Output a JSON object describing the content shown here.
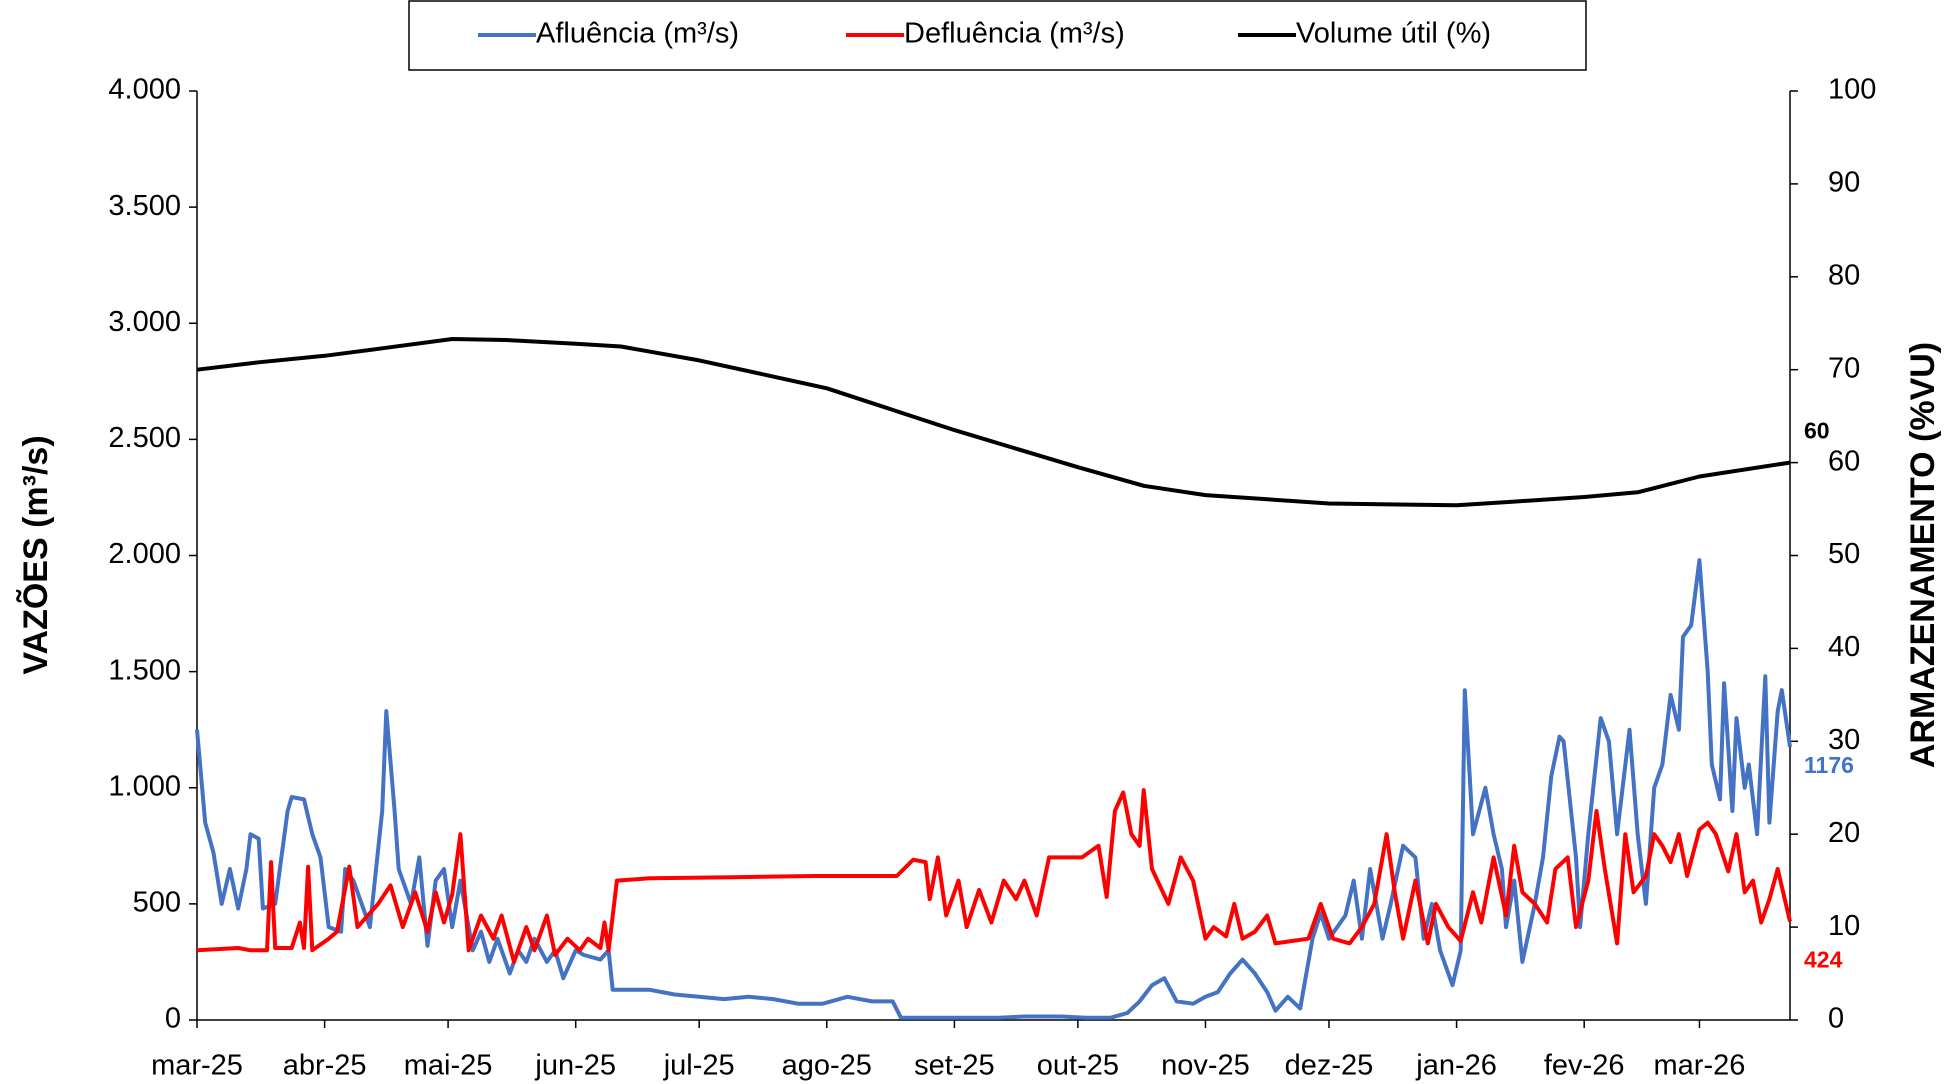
{
  "chart_data": {
    "type": "line",
    "y_label": "VAZÕES (m³/s)",
    "y2_label": "ARMAZENAMENTO (%VU)",
    "xlim": [
      0,
      387
    ],
    "xticks": [
      {
        "value": 0,
        "label": "mar-25"
      },
      {
        "value": 31,
        "label": "abr-25"
      },
      {
        "value": 61,
        "label": "mai-25"
      },
      {
        "value": 92,
        "label": "jun-25"
      },
      {
        "value": 122,
        "label": "jul-25"
      },
      {
        "value": 153,
        "label": "ago-25"
      },
      {
        "value": 184,
        "label": "set-25"
      },
      {
        "value": 214,
        "label": "out-25"
      },
      {
        "value": 245,
        "label": "nov-25"
      },
      {
        "value": 275,
        "label": "dez-25"
      },
      {
        "value": 306,
        "label": "jan-26"
      },
      {
        "value": 337,
        "label": "fev-26"
      },
      {
        "value": 365,
        "label": "mar-26"
      }
    ],
    "ylim": [
      0,
      4000
    ],
    "yticks": [
      0,
      500,
      {
        "value": 1000,
        "label": "1.000"
      },
      {
        "value": 1500,
        "label": "1.500"
      },
      {
        "value": 2000,
        "label": "2.000"
      },
      {
        "value": 2500,
        "label": "2.500"
      },
      {
        "value": 3000,
        "label": "3.000"
      },
      {
        "value": 3500,
        "label": "3.500"
      },
      {
        "value": 4000,
        "label": "4.000"
      }
    ],
    "y2lim": [
      0,
      100
    ],
    "y2ticks": [
      0,
      10,
      20,
      30,
      40,
      50,
      60,
      70,
      80,
      90,
      100
    ],
    "grid": false,
    "legend": "top",
    "series": [
      {
        "name": "Afluência (m³/s)",
        "color": "#4472c4",
        "end_label": true,
        "x": [
          0,
          2,
          4,
          6,
          8,
          10,
          12,
          13,
          15,
          16,
          19,
          22,
          23,
          26,
          28,
          30,
          32,
          35,
          36,
          38,
          42,
          45,
          46,
          48,
          49,
          52,
          54,
          56,
          58,
          60,
          62,
          64,
          67,
          69,
          71,
          73,
          76,
          78,
          80,
          82,
          85,
          87,
          89,
          92,
          94,
          98,
          100,
          101,
          104,
          110,
          116,
          122,
          128,
          134,
          140,
          146,
          152,
          158,
          164,
          169,
          171,
          176,
          182,
          188,
          195,
          201,
          210,
          216,
          222,
          226,
          229,
          232,
          235,
          238,
          242,
          245,
          248,
          251,
          254,
          257,
          260,
          262,
          265,
          268,
          271,
          273,
          275,
          277,
          279,
          281,
          283,
          285,
          288,
          290,
          293,
          296,
          298,
          300,
          302,
          305,
          307,
          308,
          310,
          313,
          315,
          317,
          318,
          320,
          322,
          325,
          327,
          329,
          331,
          332,
          335,
          336,
          338,
          341,
          343,
          345,
          348,
          350,
          352,
          354,
          356,
          358,
          360,
          361,
          363,
          365,
          367,
          368,
          370,
          371,
          373,
          374,
          376,
          377,
          379,
          381,
          382,
          384,
          385,
          387
        ],
        "values": [
          1250,
          850,
          720,
          500,
          650,
          480,
          650,
          800,
          780,
          480,
          500,
          900,
          960,
          950,
          800,
          700,
          400,
          380,
          650,
          600,
          400,
          900,
          1330,
          900,
          650,
          500,
          700,
          320,
          600,
          650,
          400,
          600,
          300,
          380,
          250,
          350,
          200,
          300,
          250,
          350,
          250,
          300,
          180,
          300,
          280,
          260,
          300,
          130,
          130,
          130,
          110,
          100,
          90,
          100,
          90,
          70,
          70,
          100,
          80,
          80,
          10,
          10,
          10,
          10,
          10,
          15,
          15,
          10,
          10,
          30,
          80,
          150,
          180,
          80,
          70,
          100,
          120,
          200,
          260,
          200,
          120,
          40,
          100,
          50,
          350,
          460,
          350,
          400,
          450,
          600,
          350,
          650,
          350,
          500,
          750,
          700,
          350,
          500,
          300,
          150,
          300,
          1420,
          800,
          1000,
          800,
          650,
          400,
          600,
          250,
          500,
          700,
          1050,
          1220,
          1200,
          700,
          400,
          800,
          1300,
          1200,
          800,
          1250,
          800,
          500,
          1000,
          1100,
          1400,
          1250,
          1650,
          1700,
          1980,
          1500,
          1100,
          950,
          1450,
          900,
          1300,
          1000,
          1100,
          800,
          1480,
          850,
          1330,
          1420,
          1176
        ]
      },
      {
        "name": "Defluência (m³/s)",
        "color": "#ff0000",
        "end_label": true,
        "x": [
          0,
          10,
          13,
          17,
          18,
          19,
          23,
          25,
          26,
          27,
          28,
          32,
          34,
          37,
          39,
          44,
          47,
          50,
          53,
          56,
          58,
          60,
          62,
          64,
          66,
          69,
          72,
          74,
          77,
          80,
          82,
          85,
          87,
          90,
          93,
          95,
          98,
          99,
          100,
          102,
          110,
          130,
          150,
          170,
          174,
          177,
          178,
          180,
          182,
          185,
          187,
          190,
          193,
          196,
          199,
          201,
          204,
          207,
          215,
          219,
          221,
          223,
          225,
          227,
          229,
          230,
          232,
          236,
          239,
          242,
          245,
          247,
          250,
          252,
          254,
          257,
          260,
          262,
          266,
          270,
          273,
          276,
          280,
          283,
          286,
          289,
          291,
          293,
          296,
          299,
          301,
          304,
          307,
          310,
          312,
          315,
          318,
          320,
          322,
          325,
          328,
          330,
          333,
          335,
          338,
          340,
          342,
          345,
          347,
          349,
          352,
          354,
          356,
          358,
          360,
          362,
          365,
          367,
          369,
          372,
          374,
          376,
          378,
          380,
          382,
          384,
          387
        ],
        "values": [
          300,
          310,
          300,
          300,
          680,
          310,
          310,
          420,
          310,
          660,
          300,
          350,
          380,
          660,
          400,
          500,
          580,
          400,
          550,
          380,
          550,
          420,
          540,
          800,
          300,
          450,
          350,
          450,
          250,
          400,
          300,
          450,
          280,
          350,
          300,
          350,
          310,
          420,
          300,
          600,
          610,
          615,
          620,
          620,
          690,
          680,
          520,
          700,
          450,
          600,
          400,
          560,
          420,
          600,
          520,
          600,
          450,
          700,
          700,
          750,
          530,
          900,
          980,
          800,
          750,
          990,
          650,
          500,
          700,
          600,
          350,
          400,
          360,
          500,
          350,
          380,
          450,
          330,
          340,
          350,
          500,
          350,
          330,
          400,
          500,
          800,
          550,
          350,
          600,
          330,
          500,
          400,
          340,
          550,
          420,
          700,
          450,
          750,
          550,
          500,
          420,
          650,
          700,
          400,
          600,
          900,
          650,
          330,
          800,
          550,
          620,
          800,
          750,
          680,
          800,
          620,
          820,
          850,
          800,
          640,
          800,
          550,
          600,
          420,
          520,
          650,
          424
        ]
      },
      {
        "name": "Volume útil (%)",
        "color": "#000000",
        "axis": "y2",
        "end_label": true,
        "x": [
          0,
          15,
          31,
          45,
          62,
          75,
          92,
          103,
          122,
          153,
          184,
          214,
          230,
          245,
          275,
          306,
          320,
          337,
          350,
          365,
          387
        ],
        "values": [
          70,
          70.8,
          71.5,
          72.3,
          73.3,
          73.2,
          72.8,
          72.5,
          71,
          68,
          63.5,
          59.5,
          57.5,
          56.5,
          55.6,
          55.4,
          55.8,
          56.3,
          56.8,
          58.5,
          60
        ]
      }
    ]
  }
}
